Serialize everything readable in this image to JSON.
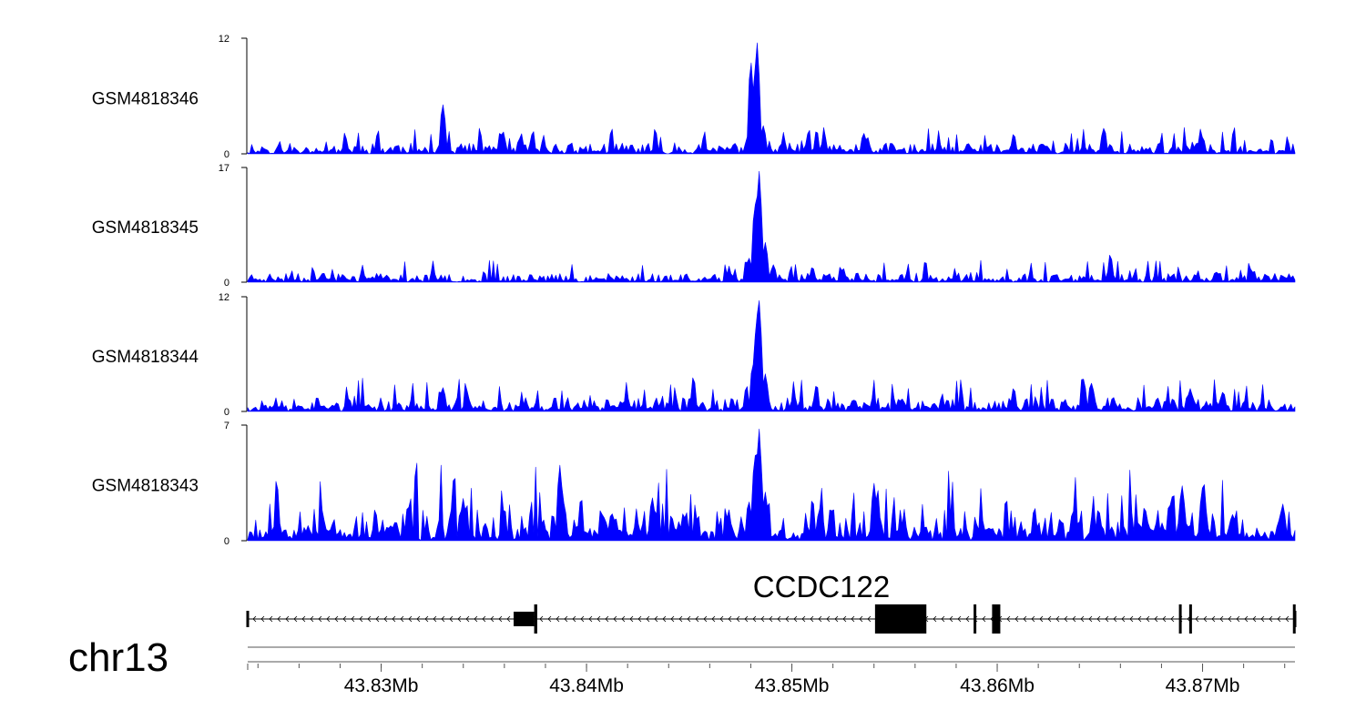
{
  "chart_data": {
    "type": "area",
    "chromosome": "chr13",
    "gene": "CCDC122",
    "x_unit": "Mb",
    "xlim": [
      43.8235,
      43.8745
    ],
    "x_ticks": [
      {
        "value": 43.83,
        "label": "43.83Mb"
      },
      {
        "value": 43.84,
        "label": "43.84Mb"
      },
      {
        "value": 43.85,
        "label": "43.85Mb"
      },
      {
        "value": 43.86,
        "label": "43.86Mb"
      },
      {
        "value": 43.87,
        "label": "43.87Mb"
      }
    ],
    "series": [
      {
        "name": "GSM4818346",
        "ylim": [
          0,
          12
        ],
        "y_max_label": "12",
        "y_min_label": "0",
        "color": "#0000ff",
        "noise": 1.1,
        "seed": 11,
        "peaks": [
          [
            43.833,
            5.3
          ],
          [
            43.8358,
            2.4
          ],
          [
            43.8374,
            2.5
          ],
          [
            43.848,
            10.0
          ],
          [
            43.8483,
            12.0
          ],
          [
            43.8486,
            3.0
          ],
          [
            43.8512,
            2.6
          ],
          [
            43.8535,
            2.2
          ],
          [
            43.8608,
            2.2
          ],
          [
            43.8652,
            2.8
          ],
          [
            43.87,
            1.8
          ]
        ]
      },
      {
        "name": "GSM4818345",
        "ylim": [
          0,
          17
        ],
        "y_max_label": "17",
        "y_min_label": "0",
        "color": "#0000ff",
        "noise": 1.3,
        "seed": 23,
        "peaks": [
          [
            43.8479,
            3.8
          ],
          [
            43.8482,
            12.0
          ],
          [
            43.8484,
            17.0
          ],
          [
            43.8487,
            6.0
          ],
          [
            43.8491,
            2.6
          ],
          [
            43.851,
            2.4
          ],
          [
            43.8525,
            2.2
          ],
          [
            43.8655,
            4.3
          ],
          [
            43.8707,
            1.6
          ],
          [
            43.8725,
            1.8
          ]
        ]
      },
      {
        "name": "GSM4818344",
        "ylim": [
          0,
          12
        ],
        "y_max_label": "12",
        "y_min_label": "0",
        "color": "#0000ff",
        "noise": 1.4,
        "seed": 37,
        "peaks": [
          [
            43.833,
            2.6
          ],
          [
            43.8452,
            3.8
          ],
          [
            43.8478,
            2.8
          ],
          [
            43.8481,
            5.2
          ],
          [
            43.8483,
            10.6
          ],
          [
            43.8484,
            12.0
          ],
          [
            43.8487,
            4.0
          ],
          [
            43.8512,
            3.0
          ],
          [
            43.8608,
            2.6
          ],
          [
            43.8642,
            3.4
          ],
          [
            43.8646,
            3.0
          ],
          [
            43.8694,
            2.4
          ],
          [
            43.871,
            2.2
          ]
        ]
      },
      {
        "name": "GSM4818343",
        "ylim": [
          0,
          7
        ],
        "y_max_label": "7",
        "y_min_label": "0",
        "color": "#0000ff",
        "noise": 1.9,
        "seed": 53,
        "peaks": [
          [
            43.8249,
            3.9
          ],
          [
            43.8314,
            2.4
          ],
          [
            43.834,
            2.6
          ],
          [
            43.8387,
            4.6
          ],
          [
            43.8389,
            2.3
          ],
          [
            43.8432,
            2.7
          ],
          [
            43.8479,
            2.5
          ],
          [
            43.8482,
            5.4
          ],
          [
            43.8484,
            7.0
          ],
          [
            43.8487,
            3.0
          ],
          [
            43.851,
            2.7
          ],
          [
            43.854,
            3.5
          ],
          [
            43.8685,
            2.8
          ],
          [
            43.869,
            3.4
          ],
          [
            43.87,
            3.3
          ],
          [
            43.8739,
            2.3
          ]
        ]
      }
    ],
    "gene_model": {
      "strand": "-",
      "start": 43.8235,
      "end": 43.8745,
      "exons": [
        {
          "start": 43.83645,
          "end": 43.83745,
          "size": "utr"
        },
        {
          "start": 43.83745,
          "end": 43.8376,
          "size": "cds"
        },
        {
          "start": 43.85405,
          "end": 43.85655,
          "size": "cds"
        },
        {
          "start": 43.85885,
          "end": 43.85895,
          "size": "cds"
        },
        {
          "start": 43.85975,
          "end": 43.86015,
          "size": "cds"
        },
        {
          "start": 43.86885,
          "end": 43.86895,
          "size": "cds"
        },
        {
          "start": 43.86935,
          "end": 43.86945,
          "size": "cds"
        },
        {
          "start": 43.8744,
          "end": 43.8745,
          "size": "cds"
        }
      ]
    }
  }
}
